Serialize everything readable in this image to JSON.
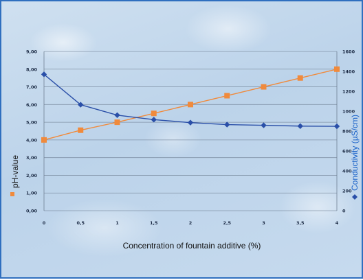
{
  "chart_data": {
    "type": "line",
    "title": "",
    "xlabel": "Concentration of fountain additive (%)",
    "ylabel": "pH-value",
    "y2label": "Conductivity (µS/cm)",
    "categories": [
      "0",
      "0,5",
      "1",
      "1,5",
      "2",
      "2,5",
      "3",
      "3,5",
      "4"
    ],
    "ylim": [
      0,
      9
    ],
    "y2lim": [
      0,
      1600
    ],
    "y_ticks": [
      "0,00",
      "1,00",
      "2,00",
      "3,00",
      "4,00",
      "5,00",
      "6,00",
      "7,00",
      "8,00",
      "9,00"
    ],
    "y2_ticks": [
      "0",
      "200",
      "400",
      "600",
      "800",
      "1000",
      "1200",
      "1400",
      "1600"
    ],
    "grid": true,
    "series": [
      {
        "name": "pH-value",
        "axis": "left",
        "marker": "square",
        "color": "#f08a3c",
        "values": [
          4.0,
          4.55,
          5.0,
          5.5,
          6.0,
          6.5,
          7.0,
          7.5,
          8.0
        ]
      },
      {
        "name": "Conductivity (µS/cm)",
        "axis": "right",
        "marker": "diamond",
        "color": "#2a4fa8",
        "values": [
          1370,
          1065,
          960,
          915,
          885,
          865,
          858,
          850,
          848
        ]
      }
    ]
  }
}
